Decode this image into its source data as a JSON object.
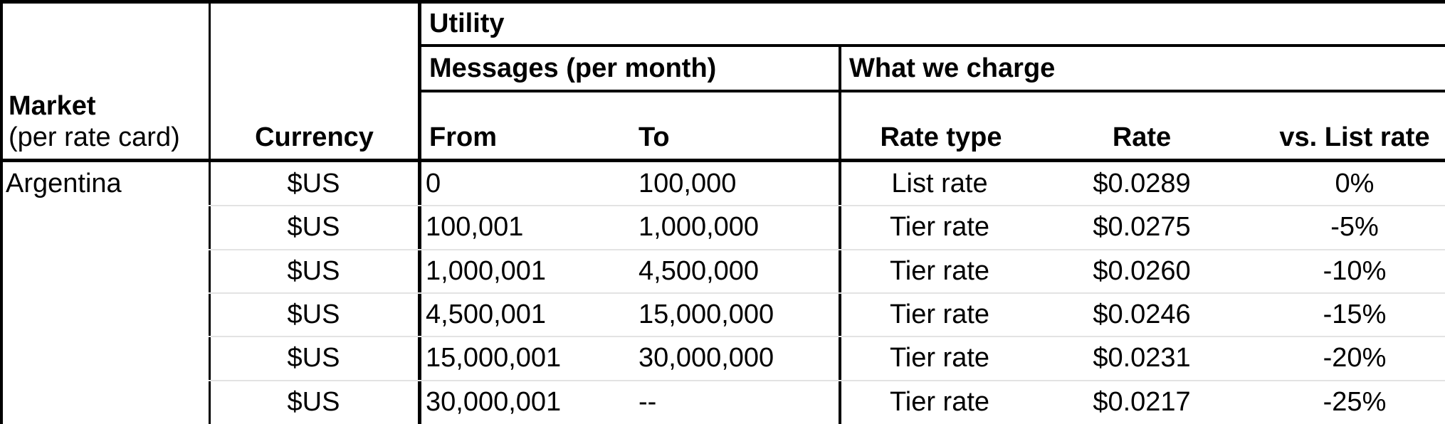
{
  "table": {
    "group_headers": {
      "utility": "Utility",
      "messages": "Messages (per month)",
      "what_we_charge": "What we charge"
    },
    "column_headers": {
      "market_title": "Market",
      "market_subtitle": "(per rate card)",
      "currency": "Currency",
      "from": "From",
      "to": "To",
      "rate_type": "Rate type",
      "rate": "Rate",
      "vs_list_rate": "vs. List rate"
    },
    "rows": [
      {
        "market": "Argentina",
        "currency": "$US",
        "from": "0",
        "to": "100,000",
        "rate_type": "List rate",
        "rate": "$0.0289",
        "vs_list": "0%"
      },
      {
        "market": "",
        "currency": "$US",
        "from": "100,001",
        "to": "1,000,000",
        "rate_type": "Tier rate",
        "rate": "$0.0275",
        "vs_list": "-5%"
      },
      {
        "market": "",
        "currency": "$US",
        "from": "1,000,001",
        "to": "4,500,000",
        "rate_type": "Tier rate",
        "rate": "$0.0260",
        "vs_list": "-10%"
      },
      {
        "market": "",
        "currency": "$US",
        "from": "4,500,001",
        "to": "15,000,000",
        "rate_type": "Tier rate",
        "rate": "$0.0246",
        "vs_list": "-15%"
      },
      {
        "market": "",
        "currency": "$US",
        "from": "15,000,001",
        "to": "30,000,000",
        "rate_type": "Tier rate",
        "rate": "$0.0231",
        "vs_list": "-20%"
      },
      {
        "market": "",
        "currency": "$US",
        "from": "30,000,001",
        "to": "--",
        "rate_type": "Tier rate",
        "rate": "$0.0217",
        "vs_list": "-25%"
      }
    ],
    "colors": {
      "border": "#000000",
      "row_separator": "#e3e3e3",
      "background": "#ffffff",
      "text": "#000000"
    }
  }
}
